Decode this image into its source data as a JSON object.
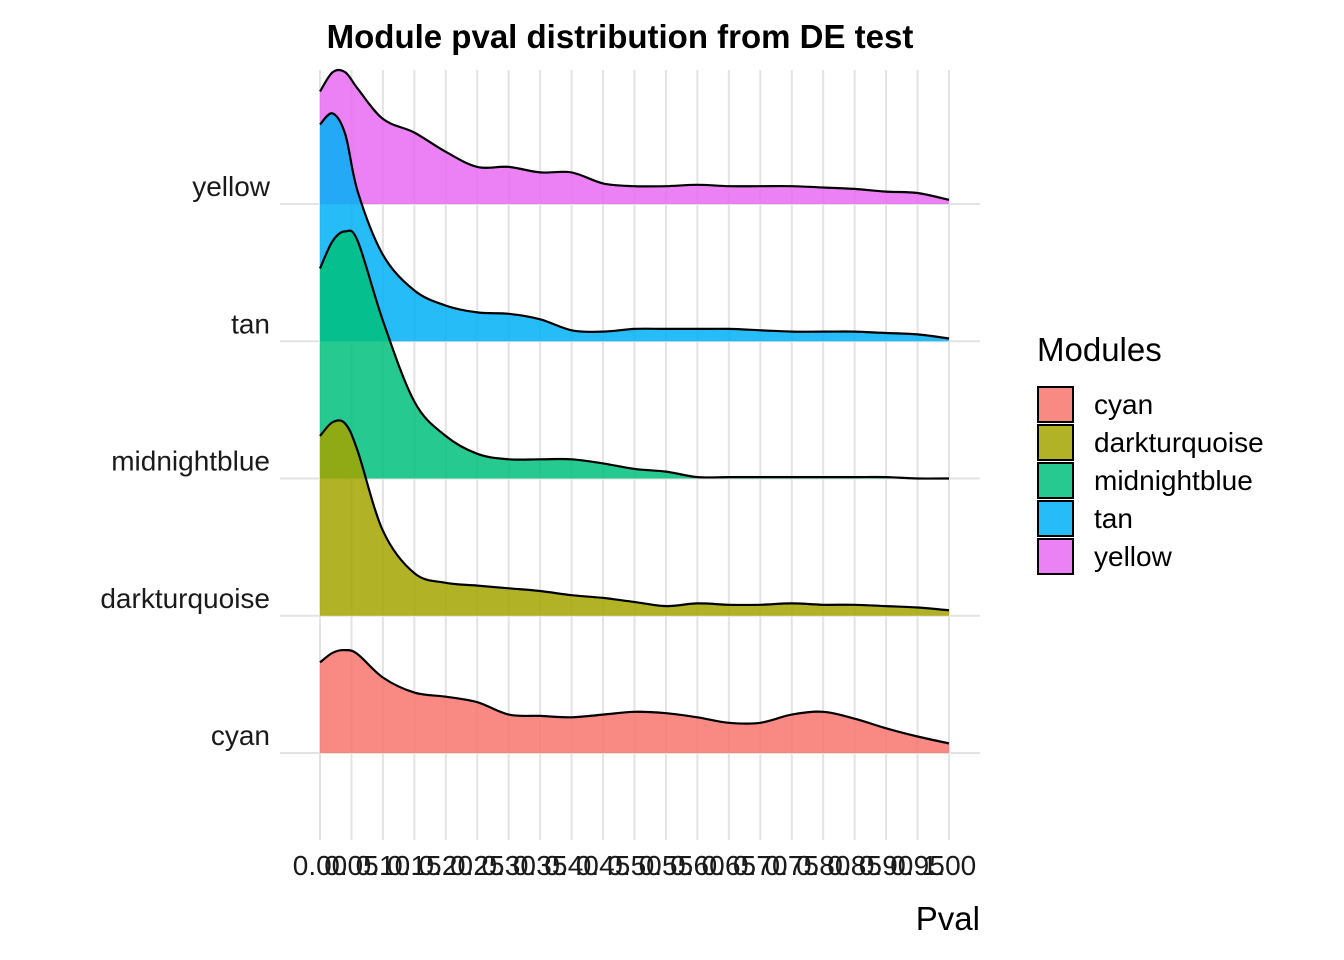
{
  "chart_data": {
    "type": "ridgeline",
    "title": "Module pval distribution from DE test",
    "xlabel": "Pval",
    "ylabel": "",
    "xlim": [
      0,
      1
    ],
    "x_tick_labels": [
      "0.00",
      "0.05",
      "0.10",
      "0.15",
      "0.20",
      "0.25",
      "0.30",
      "0.35",
      "0.40",
      "0.45",
      "0.50",
      "0.55",
      "0.60",
      "0.65",
      "0.70",
      "0.75",
      "0.80",
      "0.85",
      "0.90",
      "0.95",
      "1.00"
    ],
    "x_ticks": [
      0,
      0.05,
      0.1,
      0.15,
      0.2,
      0.25,
      0.3,
      0.35,
      0.4,
      0.45,
      0.5,
      0.55,
      0.6,
      0.65,
      0.7,
      0.75,
      0.8,
      0.85,
      0.9,
      0.95,
      1.0
    ],
    "categories": [
      "cyan",
      "darkturquoise",
      "midnightblue",
      "tan",
      "yellow"
    ],
    "grid": true,
    "legend_placement": "right",
    "legend": {
      "title": "Modules",
      "entries": [
        "cyan",
        "darkturquoise",
        "midnightblue",
        "tan",
        "yellow"
      ]
    },
    "density_scale_note": "heights in units of ridge spacing",
    "series": [
      {
        "name": "cyan",
        "color": "#F8766D",
        "x": [
          0,
          0.02,
          0.04,
          0.06,
          0.1,
          0.15,
          0.2,
          0.25,
          0.3,
          0.35,
          0.4,
          0.45,
          0.5,
          0.55,
          0.6,
          0.65,
          0.7,
          0.75,
          0.8,
          0.85,
          0.9,
          0.95,
          1.0
        ],
        "y": [
          0.66,
          0.73,
          0.75,
          0.72,
          0.55,
          0.44,
          0.41,
          0.37,
          0.28,
          0.27,
          0.26,
          0.28,
          0.3,
          0.29,
          0.26,
          0.22,
          0.22,
          0.28,
          0.3,
          0.25,
          0.18,
          0.12,
          0.07
        ]
      },
      {
        "name": "darkturquoise",
        "color": "#A3A500",
        "x": [
          0,
          0.02,
          0.04,
          0.06,
          0.1,
          0.15,
          0.2,
          0.25,
          0.3,
          0.35,
          0.4,
          0.45,
          0.5,
          0.55,
          0.6,
          0.65,
          0.7,
          0.75,
          0.8,
          0.85,
          0.9,
          0.95,
          1.0
        ],
        "y": [
          1.31,
          1.41,
          1.4,
          1.2,
          0.62,
          0.31,
          0.24,
          0.22,
          0.2,
          0.18,
          0.15,
          0.13,
          0.1,
          0.07,
          0.09,
          0.08,
          0.08,
          0.09,
          0.08,
          0.08,
          0.07,
          0.06,
          0.04
        ]
      },
      {
        "name": "midnightblue",
        "color": "#00BF7D",
        "x": [
          0,
          0.02,
          0.04,
          0.06,
          0.1,
          0.15,
          0.2,
          0.25,
          0.3,
          0.35,
          0.4,
          0.45,
          0.5,
          0.55,
          0.6,
          0.65,
          0.7,
          0.75,
          0.8,
          0.85,
          0.9,
          0.95,
          1.0
        ],
        "y": [
          1.53,
          1.73,
          1.8,
          1.73,
          1.15,
          0.56,
          0.31,
          0.18,
          0.14,
          0.14,
          0.14,
          0.11,
          0.07,
          0.05,
          0.01,
          0.01,
          0.01,
          0.01,
          0.01,
          0.01,
          0.01,
          0.0,
          0.0
        ]
      },
      {
        "name": "tan",
        "color": "#00B0F6",
        "x": [
          0,
          0.02,
          0.04,
          0.06,
          0.1,
          0.15,
          0.2,
          0.25,
          0.3,
          0.35,
          0.4,
          0.45,
          0.5,
          0.55,
          0.6,
          0.65,
          0.7,
          0.75,
          0.8,
          0.85,
          0.9,
          0.95,
          1.0
        ],
        "y": [
          1.58,
          1.66,
          1.51,
          1.09,
          0.63,
          0.37,
          0.26,
          0.21,
          0.2,
          0.16,
          0.08,
          0.07,
          0.09,
          0.09,
          0.09,
          0.09,
          0.08,
          0.07,
          0.07,
          0.07,
          0.06,
          0.05,
          0.02
        ]
      },
      {
        "name": "yellow",
        "color": "#E76BF3",
        "x": [
          0,
          0.02,
          0.04,
          0.06,
          0.1,
          0.15,
          0.2,
          0.25,
          0.3,
          0.35,
          0.4,
          0.45,
          0.5,
          0.55,
          0.6,
          0.65,
          0.7,
          0.75,
          0.8,
          0.85,
          0.9,
          0.95,
          1.0
        ],
        "y": [
          0.82,
          0.96,
          0.96,
          0.84,
          0.62,
          0.52,
          0.38,
          0.27,
          0.27,
          0.23,
          0.23,
          0.15,
          0.13,
          0.13,
          0.14,
          0.13,
          0.13,
          0.13,
          0.12,
          0.11,
          0.09,
          0.08,
          0.03
        ]
      }
    ]
  }
}
